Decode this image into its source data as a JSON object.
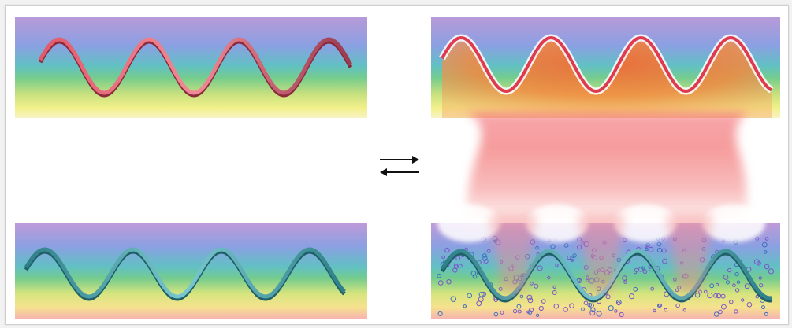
{
  "panels": [
    {
      "id": "top-left",
      "strand": "red",
      "state": "unbound"
    },
    {
      "id": "bottom-left",
      "strand": "teal",
      "state": "unbound"
    },
    {
      "id": "top-right",
      "strand": "red",
      "state": "bound"
    },
    {
      "id": "bottom-right",
      "strand": "teal",
      "state": "bound"
    }
  ],
  "colors": {
    "gradient": [
      "#b89ad8",
      "#8aa0e2",
      "#62c0c4",
      "#74cc8e",
      "#c6e07e",
      "#f2f08a",
      "#fbd9a8"
    ],
    "red_strand": "#e0606f",
    "red_strand_dark": "#a8323e",
    "teal_strand": "#4ea8b0",
    "teal_strand_dark": "#1f5f68",
    "bridge": "#f48c8c",
    "orange_glow": "#f07a3c",
    "particles": "#8a5fd0"
  },
  "symbol": {
    "name": "equilibrium-arrows-icon"
  }
}
